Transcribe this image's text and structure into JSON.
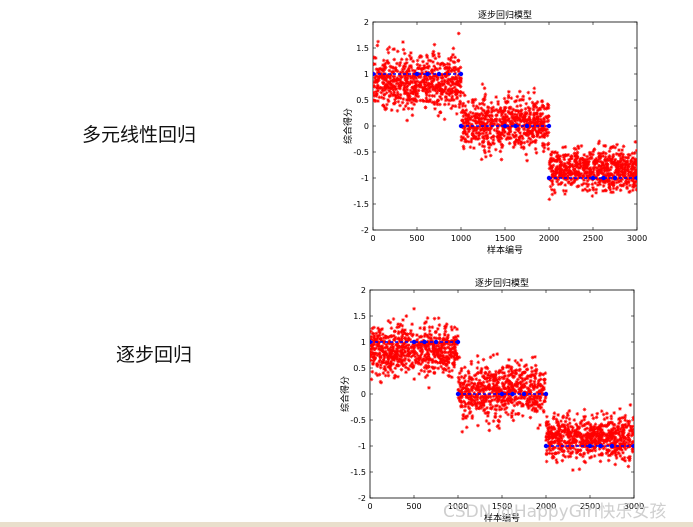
{
  "labels": [
    "多元线性回归",
    "逐步回归"
  ],
  "watermark": "CSDN @HappyGirl快乐女孩",
  "colors": {
    "points": "#ff0000",
    "fitted": "#0000ff"
  },
  "chart_data": [
    {
      "type": "scatter",
      "title": "逐步回归模型",
      "xlabel": "样本编号",
      "ylabel": "综合得分",
      "xlim": [
        0,
        3000
      ],
      "ylim": [
        -2,
        2
      ],
      "x_ticks": [
        0,
        500,
        1000,
        1500,
        2000,
        2500,
        3000
      ],
      "y_ticks": [
        2,
        1.5,
        1,
        0.5,
        0,
        -0.5,
        -1,
        -1.5,
        -2
      ],
      "grid": false,
      "series": [
        {
          "role": "observed",
          "marker": "*",
          "color": "#ff0000",
          "segments": [
            {
              "x_range": [
                0,
                1000
              ],
              "center": 0.85,
              "spread": 0.55
            },
            {
              "x_range": [
                1000,
                2000
              ],
              "center": 0.05,
              "spread": 0.55
            },
            {
              "x_range": [
                2000,
                3000
              ],
              "center": -0.85,
              "spread": 0.45
            }
          ]
        },
        {
          "role": "fitted",
          "marker": "o",
          "color": "#0000ff",
          "segments": [
            {
              "x_range": [
                0,
                1000
              ],
              "value": 1
            },
            {
              "x_range": [
                1000,
                2000
              ],
              "value": 0
            },
            {
              "x_range": [
                2000,
                3000
              ],
              "value": -1
            }
          ]
        }
      ]
    },
    {
      "type": "scatter",
      "title": "逐步回归模型",
      "xlabel": "样本编号",
      "ylabel": "综合得分",
      "xlim": [
        0,
        3000
      ],
      "ylim": [
        -2,
        2
      ],
      "x_ticks": [
        0,
        500,
        1000,
        1500,
        2000,
        2500,
        3000
      ],
      "y_ticks": [
        2,
        1.5,
        1,
        0.5,
        0,
        -0.5,
        -1,
        -1.5,
        -2
      ],
      "grid": false,
      "series": [
        {
          "role": "observed",
          "marker": "*",
          "color": "#ff0000",
          "segments": [
            {
              "x_range": [
                0,
                1000
              ],
              "center": 0.85,
              "spread": 0.55
            },
            {
              "x_range": [
                1000,
                2000
              ],
              "center": 0.05,
              "spread": 0.55
            },
            {
              "x_range": [
                2000,
                3000
              ],
              "center": -0.85,
              "spread": 0.45
            }
          ]
        },
        {
          "role": "fitted",
          "marker": "o",
          "color": "#0000ff",
          "segments": [
            {
              "x_range": [
                0,
                1000
              ],
              "value": 1
            },
            {
              "x_range": [
                1000,
                2000
              ],
              "value": 0
            },
            {
              "x_range": [
                2000,
                3000
              ],
              "value": -1
            }
          ]
        }
      ]
    }
  ]
}
